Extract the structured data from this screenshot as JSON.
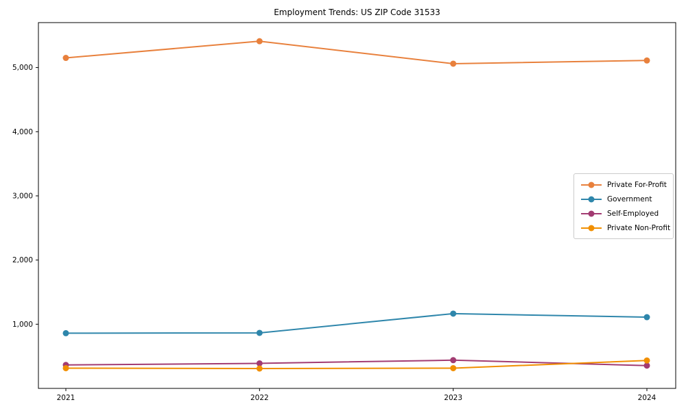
{
  "window": {
    "title": "Employment Trends: US ZIP Code 31533"
  },
  "chart_data": {
    "type": "line",
    "title": "Employment Trends: US ZIP Code 31533",
    "xlabel": "",
    "ylabel": "",
    "x_categories": [
      "2021",
      "2022",
      "2023",
      "2024"
    ],
    "series": [
      {
        "name": "Private For-Profit",
        "color": "#E8803C",
        "values": [
          5150,
          5410,
          5060,
          5110
        ]
      },
      {
        "name": "Government",
        "color": "#2E86AB",
        "values": [
          860,
          865,
          1165,
          1110
        ]
      },
      {
        "name": "Self-Employed",
        "color": "#A23B72",
        "values": [
          365,
          390,
          440,
          355
        ]
      },
      {
        "name": "Private Non-Profit",
        "color": "#F18F01",
        "values": [
          315,
          310,
          315,
          435
        ]
      }
    ],
    "ylim": [
      0,
      5700
    ],
    "yticks": [
      {
        "value": 1000,
        "label": "1,000"
      },
      {
        "value": 2000,
        "label": "2,000"
      },
      {
        "value": 3000,
        "label": "3,000"
      },
      {
        "value": 4000,
        "label": "4,000"
      },
      {
        "value": 5000,
        "label": "5,000"
      }
    ],
    "grid": false,
    "marker": "circle",
    "legend_position": "center right"
  }
}
